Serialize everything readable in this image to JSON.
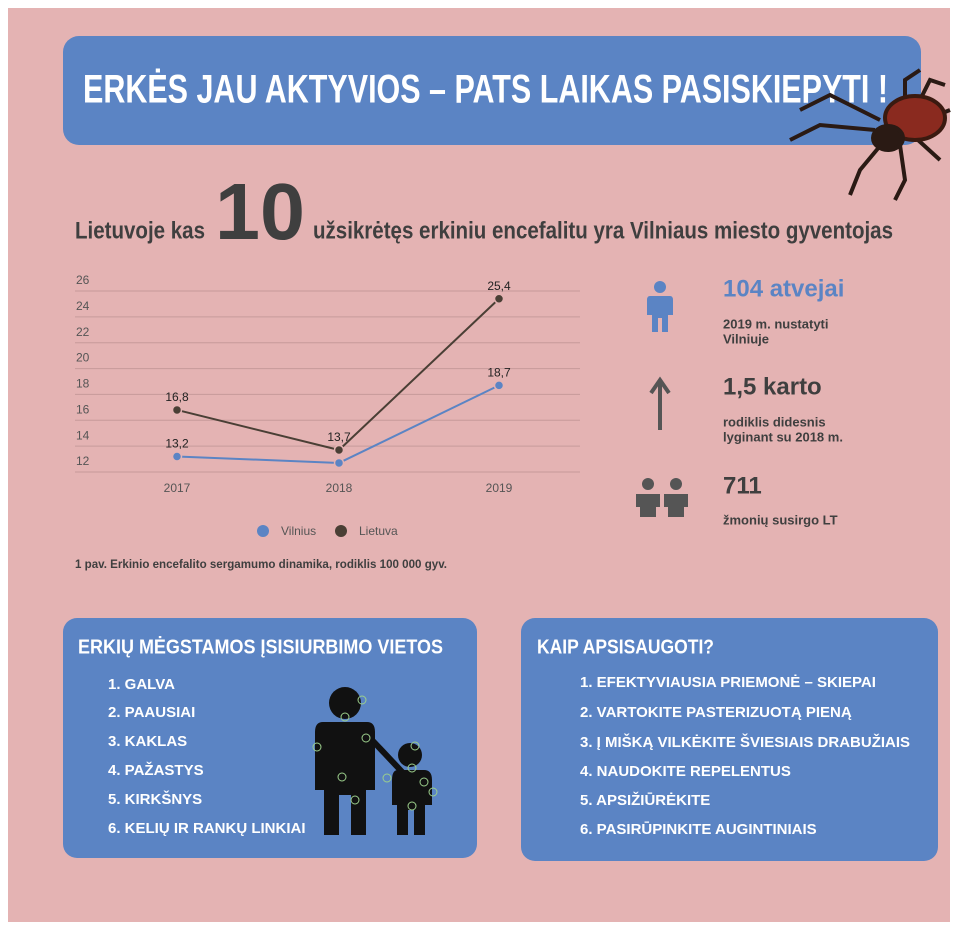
{
  "header": {
    "title": "ERKĖS JAU AKTYVIOS – PATS LAIKAS PASISKIEPYTI !"
  },
  "headline": {
    "prefix": "Lietuvoje kas",
    "number": "10",
    "suffix": "užsikrėtęs erkiniu encefalitu yra Vilniaus miesto gyventojas"
  },
  "chart_data": {
    "type": "line",
    "categories": [
      "2017",
      "2018",
      "2019"
    ],
    "series": [
      {
        "name": "Vilnius",
        "color": "#5b84c4",
        "values": [
          13.2,
          12.7,
          18.7
        ],
        "value_labels": [
          "13,2",
          null,
          "18,7"
        ]
      },
      {
        "name": "Lietuva",
        "color": "#4a3f35",
        "values": [
          16.8,
          13.7,
          25.4
        ],
        "value_labels": [
          "16,8",
          "13,7",
          "25,4"
        ]
      }
    ],
    "ylim": [
      12,
      26
    ],
    "yticks": [
      12,
      14,
      16,
      18,
      20,
      22,
      24,
      26
    ],
    "grid": true,
    "legend": "bottom"
  },
  "caption": "1 pav. Erkinio encefalito sergamumo dinamika, rodiklis 100 000 gyv.",
  "stats": [
    {
      "value": "104 atvejai",
      "lines": [
        "2019 m. nustatyti",
        "Vilniuje"
      ]
    },
    {
      "value": "1,5 karto",
      "lines": [
        "rodiklis didesnis",
        "lyginant su 2018 m."
      ]
    },
    {
      "value": "711",
      "lines": [
        "žmonių susirgo LT"
      ]
    }
  ],
  "places": {
    "title": "ERKIŲ MĖGSTAMOS ĮSISIURBIMO VIETOS",
    "items": [
      "1. GALVA",
      "2. PAAUSIAI",
      "3. KAKLAS",
      "4. PAŽASTYS",
      "5. KIRKŠNYS",
      "6. KELIŲ IR RANKŲ LINKIAI"
    ]
  },
  "protect": {
    "title": "KAIP APSISAUGOTI?",
    "items": [
      "1. EFEKTYVIAUSIA PRIEMONĖ – SKIEPAI",
      "2. VARTOKITE PASTERIZUOTĄ PIENĄ",
      "3. Į MIŠKĄ VILKĖKITE ŠVIESIAIS DRABUŽIAIS",
      "4. NAUDOKITE REPELENTUS",
      "5. APSIŽIŪRĖKITE",
      "6. PASIRŪPINKITE AUGINTINIAIS"
    ]
  }
}
